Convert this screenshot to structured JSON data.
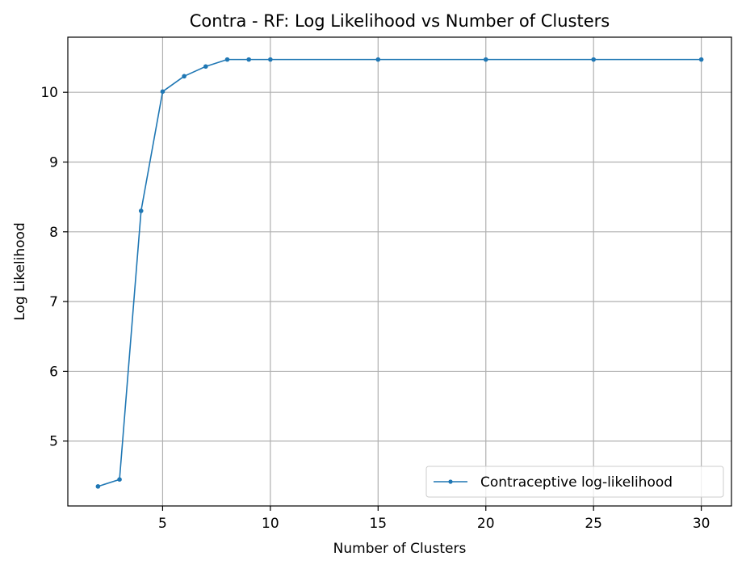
{
  "chart_data": {
    "type": "line",
    "title": "Contra - RF: Log Likelihood vs Number of Clusters",
    "xlabel": "Number of Clusters",
    "ylabel": "Log Likelihood",
    "xlim": [
      0.6,
      31.4
    ],
    "ylim": [
      4.07,
      10.79
    ],
    "xticks": [
      5,
      10,
      15,
      20,
      25,
      30
    ],
    "yticks": [
      5,
      6,
      7,
      8,
      9,
      10
    ],
    "grid": true,
    "legend_position": "lower-right",
    "series": [
      {
        "name": "Contraceptive log-likelihood",
        "color": "#1f77b4",
        "marker": "dot",
        "x": [
          2,
          3,
          4,
          5,
          6,
          7,
          8,
          9,
          10,
          15,
          20,
          25,
          30
        ],
        "y": [
          4.35,
          4.45,
          8.3,
          10.01,
          10.23,
          10.37,
          10.47,
          10.47,
          10.47,
          10.47,
          10.47,
          10.47,
          10.47
        ]
      }
    ]
  }
}
